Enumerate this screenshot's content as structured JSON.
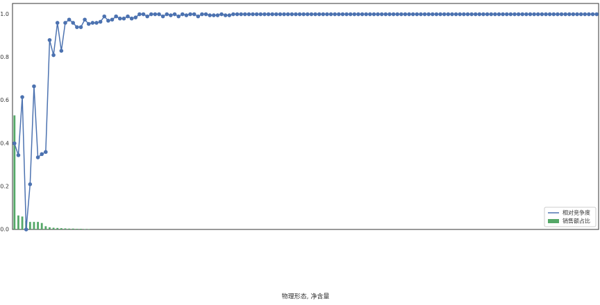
{
  "chart_data": {
    "type": "line_bar",
    "xlabel": "物理形态, 净含量",
    "categories": [
      null,
      null,
      null,
      null,
      null,
      null,
      null,
      null,
      null,
      null,
      null,
      null,
      null,
      null,
      null,
      null,
      null,
      null,
      null,
      null,
      null,
      null,
      null,
      null,
      null,
      null,
      null,
      null,
      null,
      null,
      null,
      null,
      null,
      null,
      null,
      null,
      null,
      null,
      null,
      null,
      null,
      null,
      null,
      null,
      null,
      null,
      null,
      null,
      null,
      null,
      null,
      null,
      null,
      null,
      null,
      null,
      null,
      null,
      null,
      null,
      null,
      null,
      null,
      null,
      null,
      null,
      null,
      null,
      null,
      null,
      null,
      null,
      null,
      null,
      null,
      null,
      null,
      null,
      null,
      null,
      null,
      null,
      null,
      null,
      null,
      null,
      null,
      null,
      null,
      null,
      null,
      null,
      null,
      null,
      null,
      null,
      null,
      null,
      null,
      null,
      null,
      null,
      null,
      null,
      null,
      null,
      null,
      null,
      null,
      null,
      null,
      null,
      null,
      null,
      null,
      null,
      null,
      null,
      null,
      null,
      null,
      null,
      null,
      null,
      null,
      null,
      null,
      null,
      null,
      null,
      null,
      null,
      null,
      null,
      null,
      null,
      null,
      null,
      null,
      null,
      null,
      null,
      null,
      null,
      null,
      null,
      null,
      null,
      null,
      null
    ],
    "series": [
      {
        "name": "相对竞争度",
        "kind": "line",
        "color": "#4c72b0",
        "values": [
          0.4,
          0.345,
          0.615,
          0.0,
          0.21,
          0.665,
          0.335,
          0.35,
          0.36,
          0.88,
          0.81,
          0.96,
          0.83,
          0.96,
          0.975,
          0.96,
          0.94,
          0.94,
          0.975,
          0.955,
          0.96,
          0.96,
          0.965,
          0.99,
          0.97,
          0.975,
          0.99,
          0.98,
          0.98,
          0.99,
          0.98,
          0.985,
          1.0,
          1.0,
          0.99,
          1.0,
          1.0,
          1.0,
          0.99,
          1.0,
          0.995,
          1.0,
          0.99,
          1.0,
          0.995,
          1.0,
          1.0,
          0.99,
          1.0,
          1.0,
          0.995,
          0.995,
          0.995,
          1.0,
          0.995,
          0.995,
          1.0,
          1.0,
          1.0,
          1.0,
          1.0,
          1.0,
          1.0,
          1.0,
          1.0,
          1.0,
          1.0,
          1.0,
          1.0,
          1.0,
          1.0,
          1.0,
          1.0,
          1.0,
          1.0,
          1.0,
          1.0,
          1.0,
          1.0,
          1.0,
          1.0,
          1.0,
          1.0,
          1.0,
          1.0,
          1.0,
          1.0,
          1.0,
          1.0,
          1.0,
          1.0,
          1.0,
          1.0,
          1.0,
          1.0,
          1.0,
          1.0,
          1.0,
          1.0,
          1.0,
          1.0,
          1.0,
          1.0,
          1.0,
          1.0,
          1.0,
          1.0,
          1.0,
          1.0,
          1.0,
          1.0,
          1.0,
          1.0,
          1.0,
          1.0,
          1.0,
          1.0,
          1.0,
          1.0,
          1.0,
          1.0,
          1.0,
          1.0,
          1.0,
          1.0,
          1.0,
          1.0,
          1.0,
          1.0,
          1.0,
          1.0,
          1.0,
          1.0,
          1.0,
          1.0,
          1.0,
          1.0,
          1.0,
          1.0,
          1.0,
          1.0,
          1.0,
          1.0,
          1.0,
          1.0,
          1.0,
          1.0,
          1.0,
          1.0,
          1.0
        ]
      },
      {
        "name": "销售额占比",
        "kind": "bar",
        "color": "#55a868",
        "values": [
          0.53,
          0.065,
          0.06,
          0.04,
          0.035,
          0.035,
          0.035,
          0.03,
          0.015,
          0.01,
          0.008,
          0.007,
          0.006,
          0.005,
          0.004,
          0.004,
          0.003,
          0.003,
          0.002,
          0.002,
          0,
          0,
          0,
          0,
          0,
          0,
          0,
          0,
          0,
          0,
          0,
          0,
          0,
          0,
          0,
          0,
          0,
          0,
          0,
          0,
          0,
          0,
          0,
          0,
          0,
          0,
          0,
          0,
          0,
          0,
          0,
          0,
          0,
          0,
          0,
          0,
          0,
          0,
          0,
          0,
          0,
          0,
          0,
          0,
          0,
          0,
          0,
          0,
          0,
          0,
          0,
          0,
          0,
          0,
          0,
          0,
          0,
          0,
          0,
          0,
          0,
          0,
          0,
          0,
          0,
          0,
          0,
          0,
          0,
          0,
          0,
          0,
          0,
          0,
          0,
          0,
          0,
          0,
          0,
          0,
          0,
          0,
          0,
          0,
          0,
          0,
          0,
          0,
          0,
          0,
          0,
          0,
          0,
          0,
          0,
          0,
          0,
          0,
          0,
          0,
          0,
          0,
          0,
          0,
          0,
          0,
          0,
          0,
          0,
          0,
          0,
          0,
          0,
          0,
          0,
          0,
          0,
          0,
          0,
          0,
          0,
          0,
          0,
          0,
          0,
          0,
          0,
          0,
          0,
          0
        ]
      }
    ],
    "ylim": [
      0,
      1.05
    ],
    "yticks": [
      {
        "value": 0,
        "label": "0.0"
      },
      0.2,
      0.4,
      0.6,
      0.8,
      {
        "value": 1,
        "label": "1.0"
      }
    ],
    "legend": "lower right"
  }
}
